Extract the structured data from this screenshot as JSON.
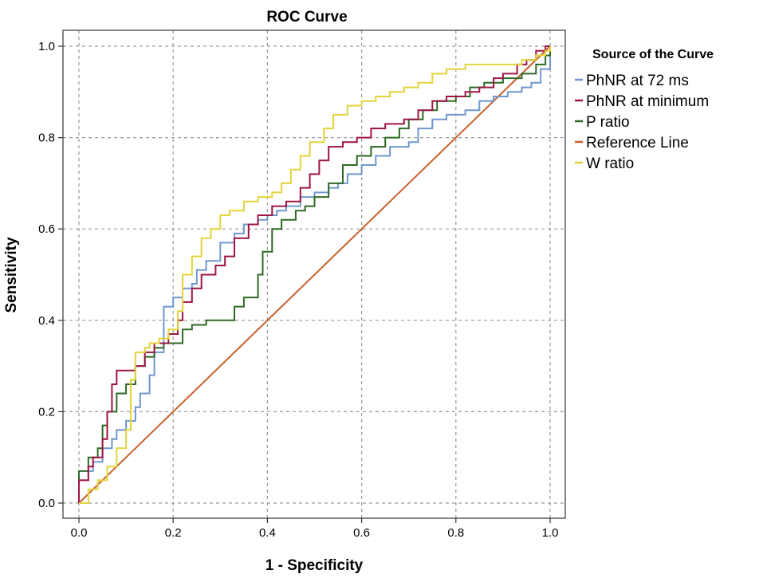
{
  "chart_data": {
    "type": "line",
    "title": "ROC Curve",
    "xlabel": "1 - Specificity",
    "ylabel": "Sensitivity",
    "xlim": [
      0,
      1
    ],
    "ylim": [
      0,
      1
    ],
    "xticks": [
      "0.0",
      "0.2",
      "0.4",
      "0.6",
      "0.8",
      "1.0"
    ],
    "yticks": [
      "0.0",
      "0.2",
      "0.4",
      "0.6",
      "0.8",
      "1.0"
    ],
    "grid": true,
    "legend_position": "right",
    "legend_title": "Source of the Curve",
    "series": [
      {
        "name": "PhNR at 72 ms",
        "color": "#6f97d0",
        "points": [
          [
            0,
            0
          ],
          [
            0,
            0.05
          ],
          [
            0.02,
            0.07
          ],
          [
            0.03,
            0.09
          ],
          [
            0.05,
            0.12
          ],
          [
            0.07,
            0.14
          ],
          [
            0.08,
            0.16
          ],
          [
            0.1,
            0.18
          ],
          [
            0.12,
            0.21
          ],
          [
            0.13,
            0.24
          ],
          [
            0.15,
            0.28
          ],
          [
            0.16,
            0.33
          ],
          [
            0.18,
            0.39
          ],
          [
            0.18,
            0.43
          ],
          [
            0.2,
            0.45
          ],
          [
            0.22,
            0.47
          ],
          [
            0.24,
            0.48
          ],
          [
            0.25,
            0.51
          ],
          [
            0.27,
            0.53
          ],
          [
            0.3,
            0.57
          ],
          [
            0.33,
            0.59
          ],
          [
            0.35,
            0.61
          ],
          [
            0.38,
            0.62
          ],
          [
            0.4,
            0.63
          ],
          [
            0.42,
            0.64
          ],
          [
            0.44,
            0.65
          ],
          [
            0.47,
            0.67
          ],
          [
            0.5,
            0.68
          ],
          [
            0.53,
            0.69
          ],
          [
            0.55,
            0.7
          ],
          [
            0.57,
            0.72
          ],
          [
            0.6,
            0.74
          ],
          [
            0.63,
            0.76
          ],
          [
            0.66,
            0.78
          ],
          [
            0.7,
            0.79
          ],
          [
            0.72,
            0.82
          ],
          [
            0.75,
            0.84
          ],
          [
            0.78,
            0.85
          ],
          [
            0.82,
            0.86
          ],
          [
            0.85,
            0.88
          ],
          [
            0.88,
            0.89
          ],
          [
            0.91,
            0.9
          ],
          [
            0.94,
            0.91
          ],
          [
            0.96,
            0.92
          ],
          [
            0.98,
            0.95
          ],
          [
            1,
            1
          ]
        ]
      },
      {
        "name": "PhNR at minimum",
        "color": "#9e1543",
        "points": [
          [
            0,
            0
          ],
          [
            0,
            0.05
          ],
          [
            0.02,
            0.08
          ],
          [
            0.03,
            0.1
          ],
          [
            0.05,
            0.14
          ],
          [
            0.06,
            0.2
          ],
          [
            0.07,
            0.26
          ],
          [
            0.08,
            0.29
          ],
          [
            0.1,
            0.29
          ],
          [
            0.12,
            0.3
          ],
          [
            0.14,
            0.33
          ],
          [
            0.16,
            0.35
          ],
          [
            0.19,
            0.37
          ],
          [
            0.21,
            0.4
          ],
          [
            0.22,
            0.44
          ],
          [
            0.24,
            0.47
          ],
          [
            0.26,
            0.5
          ],
          [
            0.29,
            0.52
          ],
          [
            0.31,
            0.54
          ],
          [
            0.33,
            0.58
          ],
          [
            0.36,
            0.61
          ],
          [
            0.38,
            0.63
          ],
          [
            0.41,
            0.65
          ],
          [
            0.44,
            0.66
          ],
          [
            0.47,
            0.69
          ],
          [
            0.49,
            0.72
          ],
          [
            0.51,
            0.75
          ],
          [
            0.53,
            0.78
          ],
          [
            0.56,
            0.79
          ],
          [
            0.59,
            0.8
          ],
          [
            0.62,
            0.82
          ],
          [
            0.65,
            0.83
          ],
          [
            0.69,
            0.84
          ],
          [
            0.72,
            0.86
          ],
          [
            0.75,
            0.88
          ],
          [
            0.78,
            0.89
          ],
          [
            0.82,
            0.9
          ],
          [
            0.85,
            0.91
          ],
          [
            0.88,
            0.93
          ],
          [
            0.9,
            0.94
          ],
          [
            0.93,
            0.96
          ],
          [
            0.95,
            0.97
          ],
          [
            0.97,
            0.99
          ],
          [
            0.99,
            1
          ],
          [
            1,
            1
          ]
        ]
      },
      {
        "name": "P ratio",
        "color": "#2e6a24",
        "points": [
          [
            0,
            0
          ],
          [
            0,
            0.07
          ],
          [
            0.02,
            0.1
          ],
          [
            0.04,
            0.12
          ],
          [
            0.05,
            0.17
          ],
          [
            0.06,
            0.2
          ],
          [
            0.08,
            0.24
          ],
          [
            0.1,
            0.26
          ],
          [
            0.12,
            0.3
          ],
          [
            0.14,
            0.32
          ],
          [
            0.16,
            0.34
          ],
          [
            0.18,
            0.35
          ],
          [
            0.2,
            0.35
          ],
          [
            0.22,
            0.38
          ],
          [
            0.24,
            0.39
          ],
          [
            0.27,
            0.4
          ],
          [
            0.3,
            0.4
          ],
          [
            0.33,
            0.43
          ],
          [
            0.35,
            0.45
          ],
          [
            0.38,
            0.46
          ],
          [
            0.38,
            0.5
          ],
          [
            0.39,
            0.55
          ],
          [
            0.41,
            0.6
          ],
          [
            0.43,
            0.62
          ],
          [
            0.46,
            0.64
          ],
          [
            0.48,
            0.65
          ],
          [
            0.5,
            0.67
          ],
          [
            0.53,
            0.7
          ],
          [
            0.56,
            0.74
          ],
          [
            0.59,
            0.76
          ],
          [
            0.62,
            0.78
          ],
          [
            0.65,
            0.8
          ],
          [
            0.68,
            0.82
          ],
          [
            0.7,
            0.84
          ],
          [
            0.73,
            0.86
          ],
          [
            0.76,
            0.88
          ],
          [
            0.8,
            0.89
          ],
          [
            0.83,
            0.91
          ],
          [
            0.86,
            0.92
          ],
          [
            0.9,
            0.93
          ],
          [
            0.94,
            0.94
          ],
          [
            0.97,
            0.96
          ],
          [
            0.99,
            0.98
          ],
          [
            1,
            1
          ]
        ]
      },
      {
        "name": "Reference Line",
        "color": "#c8602c",
        "points": [
          [
            0,
            0
          ],
          [
            1,
            1
          ]
        ]
      },
      {
        "name": "W ratio",
        "color": "#e3d33a",
        "points": [
          [
            0,
            0
          ],
          [
            0.02,
            0
          ],
          [
            0.02,
            0.03
          ],
          [
            0.04,
            0.05
          ],
          [
            0.06,
            0.08
          ],
          [
            0.08,
            0.12
          ],
          [
            0.1,
            0.16
          ],
          [
            0.11,
            0.2
          ],
          [
            0.11,
            0.27
          ],
          [
            0.12,
            0.33
          ],
          [
            0.14,
            0.34
          ],
          [
            0.15,
            0.35
          ],
          [
            0.17,
            0.36
          ],
          [
            0.19,
            0.38
          ],
          [
            0.21,
            0.42
          ],
          [
            0.22,
            0.5
          ],
          [
            0.24,
            0.54
          ],
          [
            0.26,
            0.58
          ],
          [
            0.28,
            0.6
          ],
          [
            0.3,
            0.63
          ],
          [
            0.32,
            0.64
          ],
          [
            0.35,
            0.66
          ],
          [
            0.38,
            0.67
          ],
          [
            0.41,
            0.68
          ],
          [
            0.43,
            0.7
          ],
          [
            0.45,
            0.73
          ],
          [
            0.47,
            0.76
          ],
          [
            0.49,
            0.79
          ],
          [
            0.52,
            0.82
          ],
          [
            0.54,
            0.85
          ],
          [
            0.57,
            0.87
          ],
          [
            0.6,
            0.88
          ],
          [
            0.63,
            0.89
          ],
          [
            0.66,
            0.9
          ],
          [
            0.69,
            0.91
          ],
          [
            0.72,
            0.92
          ],
          [
            0.75,
            0.94
          ],
          [
            0.78,
            0.95
          ],
          [
            0.82,
            0.96
          ],
          [
            0.86,
            0.96
          ],
          [
            0.9,
            0.96
          ],
          [
            0.94,
            0.97
          ],
          [
            0.97,
            0.98
          ],
          [
            0.99,
            0.99
          ],
          [
            1,
            1
          ]
        ]
      }
    ]
  }
}
